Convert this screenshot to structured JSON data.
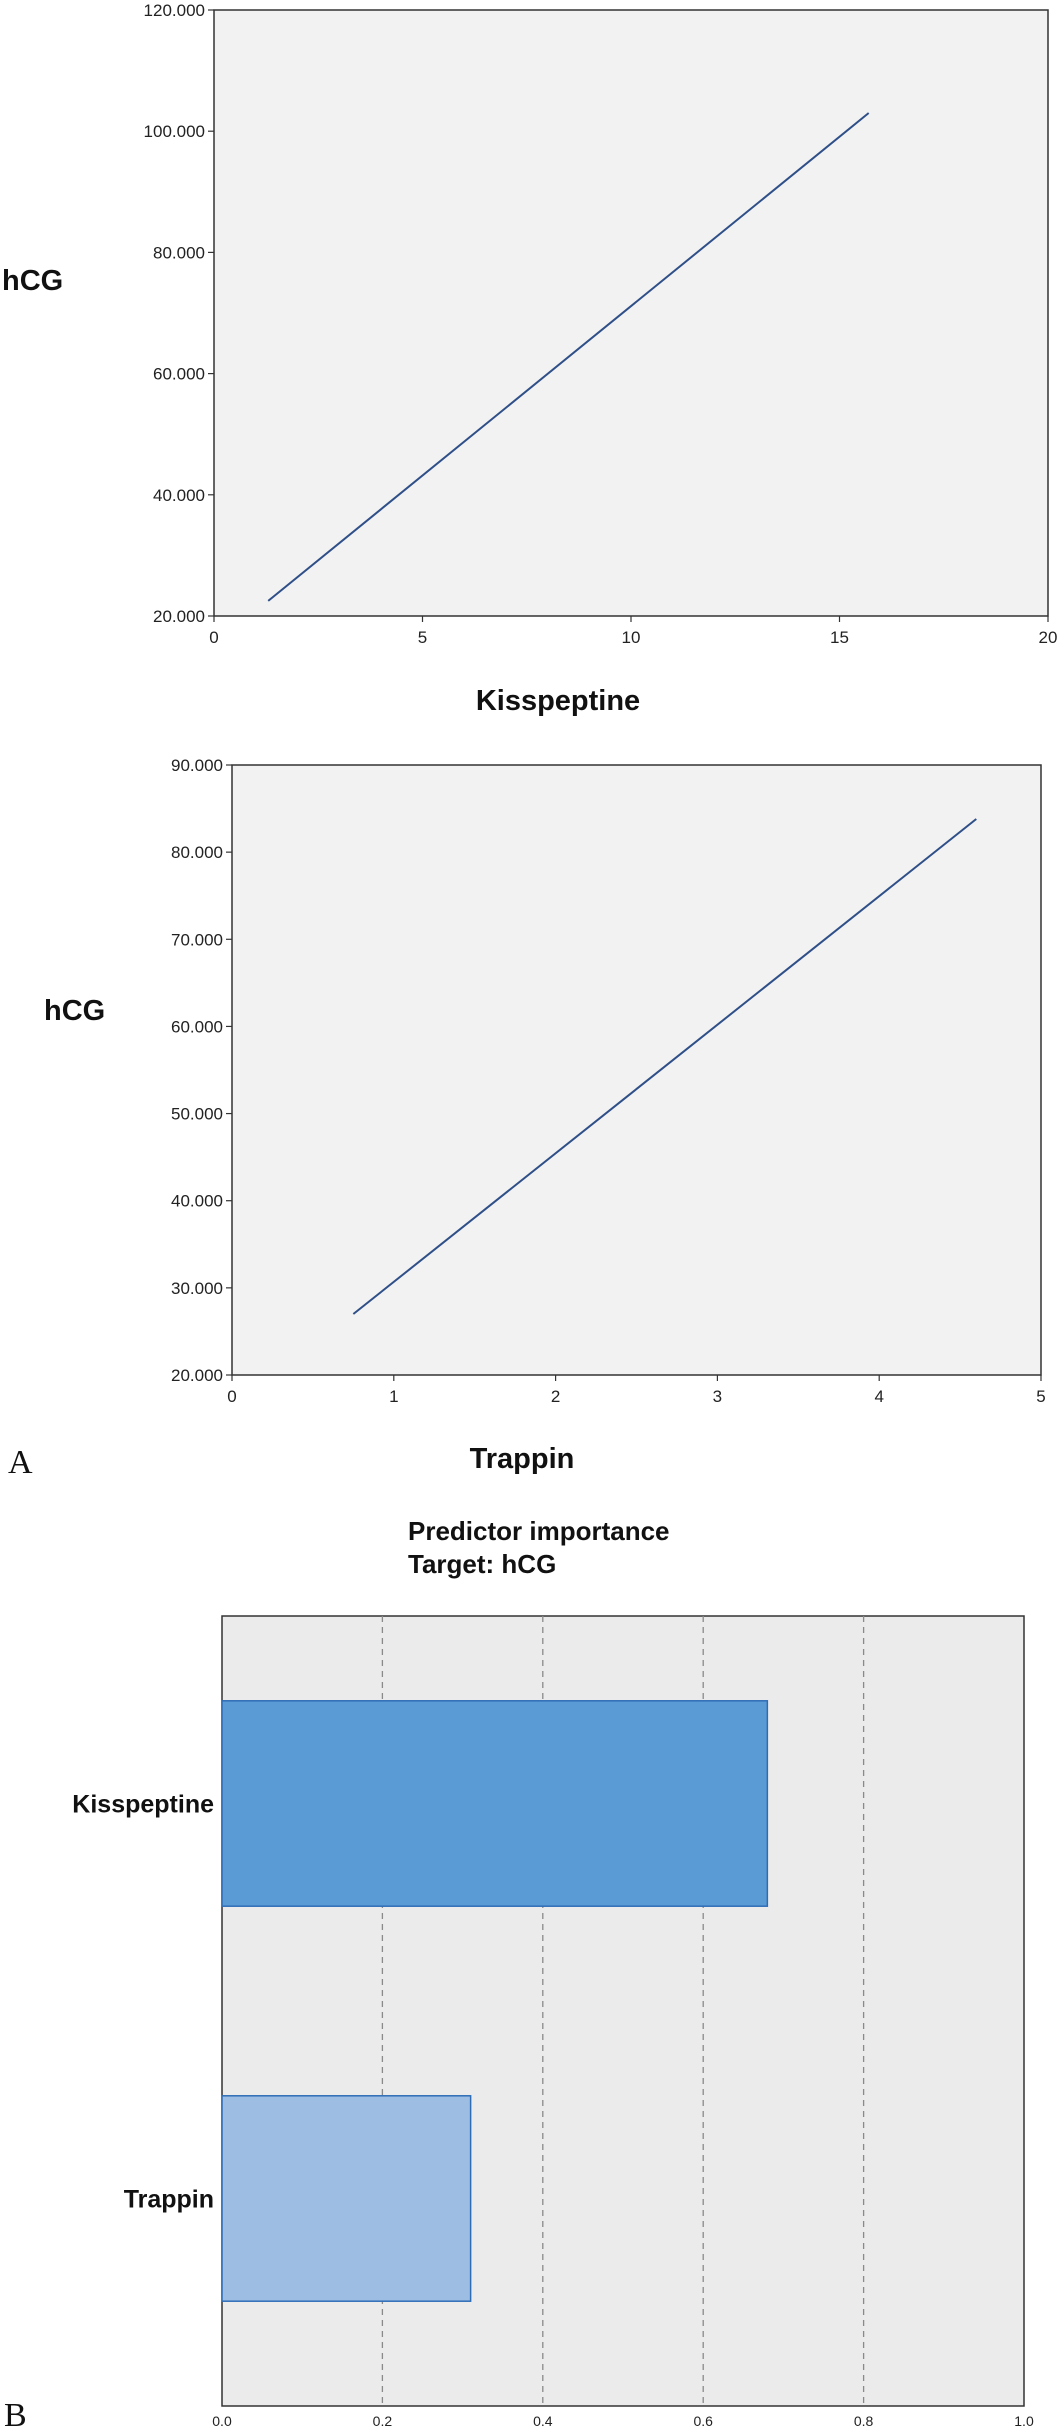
{
  "chart_data": [
    {
      "type": "line",
      "xlabel": "Kisspeptine",
      "ylabel": "hCG",
      "xlim": [
        0,
        20
      ],
      "ylim": [
        20,
        120
      ],
      "xticks": [
        "0",
        "5",
        "10",
        "15",
        "20"
      ],
      "yticks": [
        "20.000",
        "40.000",
        "60.000",
        "80.000",
        "100.000",
        "120.000"
      ],
      "series": [
        {
          "x": [
            1.3,
            15.7
          ],
          "y": [
            22.5,
            103.0
          ]
        }
      ],
      "colors": {
        "line": "#2f4f88",
        "plot_bg": "#f2f2f2"
      }
    },
    {
      "type": "line",
      "xlabel": "Trappin",
      "ylabel": "hCG",
      "xlim": [
        0,
        5
      ],
      "ylim": [
        20,
        90
      ],
      "xticks": [
        "0",
        "1",
        "2",
        "3",
        "4",
        "5"
      ],
      "yticks": [
        "20.000",
        "30.000",
        "40.000",
        "50.000",
        "60.000",
        "70.000",
        "80.000",
        "90.000"
      ],
      "series": [
        {
          "x": [
            0.75,
            4.6
          ],
          "y": [
            27.0,
            83.8
          ]
        }
      ],
      "colors": {
        "line": "#2f4f88",
        "plot_bg": "#f2f2f2"
      }
    },
    {
      "type": "bar",
      "orientation": "horizontal",
      "title": [
        "Predictor importance",
        "Target: hCG"
      ],
      "categories": [
        "Kisspeptine",
        "Trappin"
      ],
      "values": [
        0.68,
        0.31
      ],
      "xlim": [
        0,
        1.0
      ],
      "xticks": [
        "0.0",
        "0.2",
        "0.4",
        "0.6",
        "0.8",
        "1.0"
      ],
      "grid": "vertical dashed",
      "colors": {
        "bars": [
          "#5b9bd5",
          "#9dbde3"
        ],
        "bar_edge": "#2e6db5",
        "plot_bg": "#ebebeb"
      }
    }
  ],
  "panel_labels": {
    "a": "A",
    "b": "B"
  }
}
